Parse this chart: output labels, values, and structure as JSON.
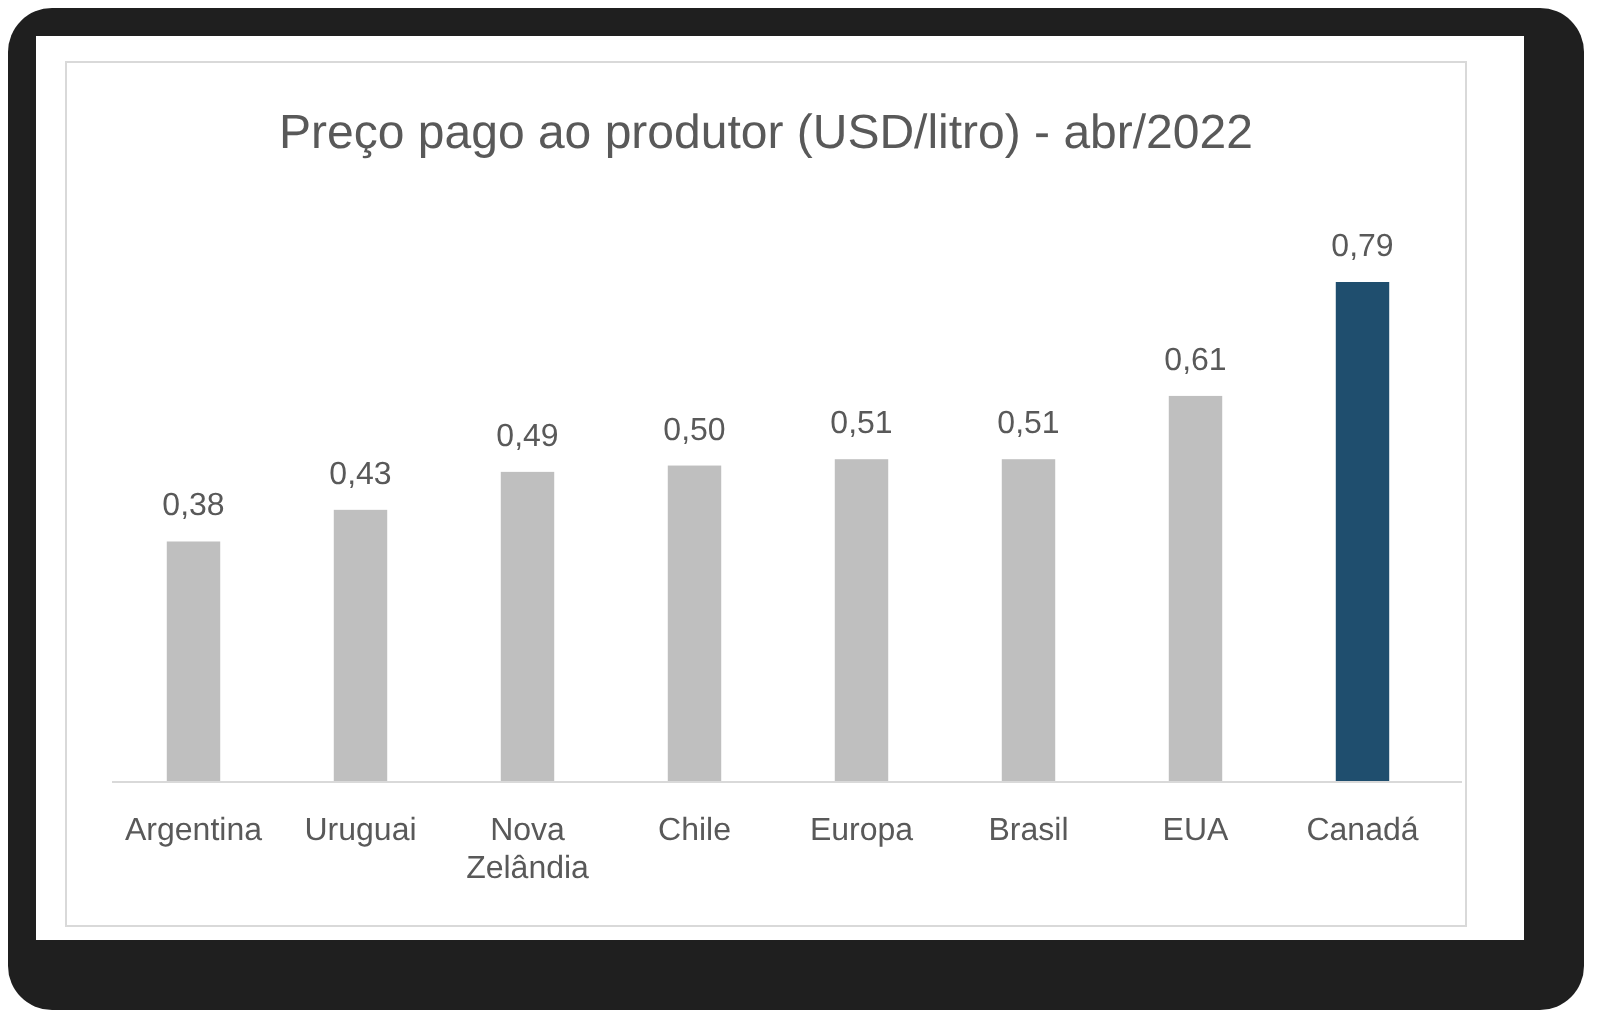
{
  "chart_data": {
    "type": "bar",
    "title": "Preço pago ao produtor (USD/litro) - abr/2022",
    "categories": [
      "Argentina",
      "Uruguai",
      "Nova Zelândia",
      "Chile",
      "Europa",
      "Brasil",
      "EUA",
      "Canadá"
    ],
    "values": [
      0.38,
      0.43,
      0.49,
      0.5,
      0.51,
      0.51,
      0.61,
      0.79
    ],
    "colors": [
      "#bfbfbf",
      "#bfbfbf",
      "#bfbfbf",
      "#bfbfbf",
      "#bfbfbf",
      "#bfbfbf",
      "#bfbfbf",
      "#1f4e6e"
    ],
    "value_labels": [
      "0,38",
      "0,43",
      "0,49",
      "0,50",
      "0,51",
      "0,51",
      "0,61",
      "0,79"
    ]
  }
}
